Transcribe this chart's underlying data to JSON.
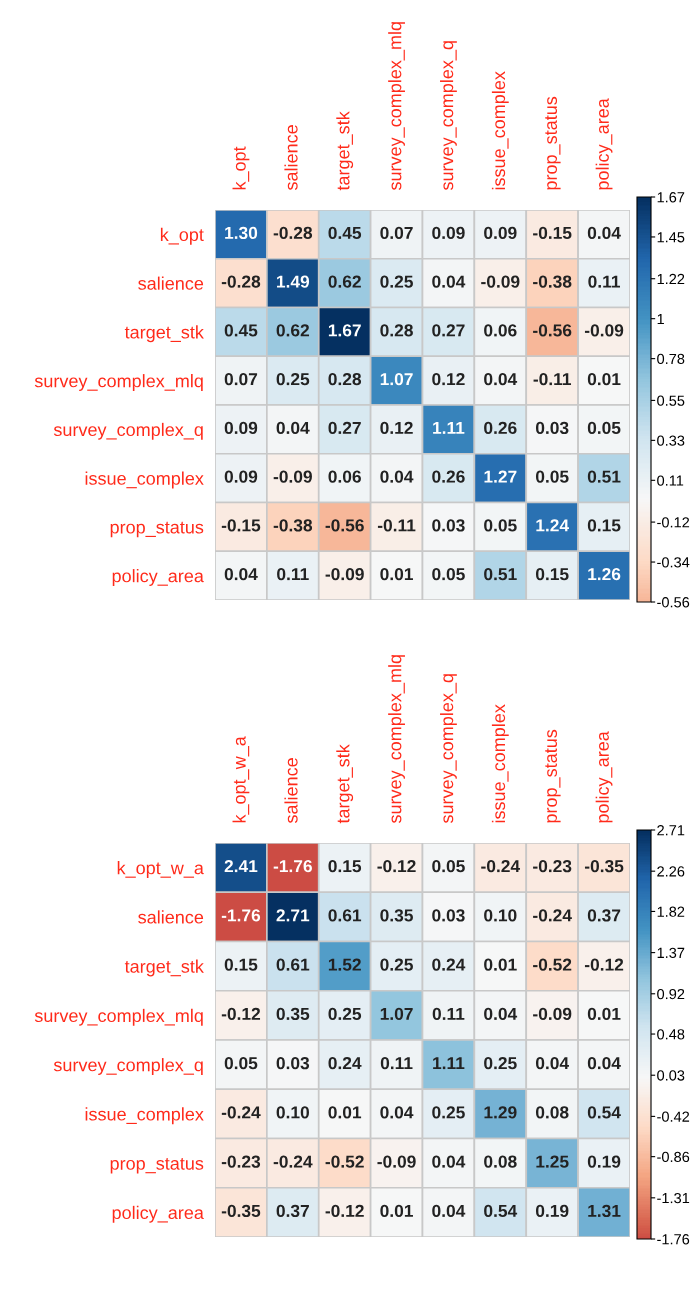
{
  "chart_data": [
    {
      "type": "heatmap",
      "categories": [
        "k_opt",
        "salience",
        "target_stk",
        "survey_complex_mlq",
        "survey_complex_q",
        "issue_complex",
        "prop_status",
        "policy_area"
      ],
      "y_categories": [
        "k_opt",
        "salience",
        "target_stk",
        "survey_complex_mlq",
        "survey_complex_q",
        "issue_complex",
        "prop_status",
        "policy_area"
      ],
      "cells": [
        [
          1.3,
          -0.28,
          0.45,
          0.07,
          0.09,
          0.09,
          -0.15,
          0.04
        ],
        [
          -0.28,
          1.49,
          0.62,
          0.25,
          0.04,
          -0.09,
          -0.38,
          0.11
        ],
        [
          0.45,
          0.62,
          1.67,
          0.28,
          0.27,
          0.06,
          -0.56,
          -0.09
        ],
        [
          0.07,
          0.25,
          0.28,
          1.07,
          0.12,
          0.04,
          -0.11,
          0.01
        ],
        [
          0.09,
          0.04,
          0.27,
          0.12,
          1.11,
          0.26,
          0.03,
          0.05
        ],
        [
          0.09,
          -0.09,
          0.06,
          0.04,
          0.26,
          1.27,
          0.05,
          0.51
        ],
        [
          -0.15,
          -0.38,
          -0.56,
          -0.11,
          0.03,
          0.05,
          1.24,
          0.15
        ],
        [
          0.04,
          0.11,
          -0.09,
          0.01,
          0.05,
          0.51,
          0.15,
          1.26
        ]
      ],
      "cell_labels": [
        [
          "1.30",
          "-0.28",
          "0.45",
          "0.07",
          "0.09",
          "0.09",
          "-0.15",
          "0.04"
        ],
        [
          "-0.28",
          "1.49",
          "0.62",
          "0.25",
          "0.04",
          "-0.09",
          "-0.38",
          "0.11"
        ],
        [
          "0.45",
          "0.62",
          "1.67",
          "0.28",
          "0.27",
          "0.06",
          "-0.56",
          "-0.09"
        ],
        [
          "0.07",
          "0.25",
          "0.28",
          "1.07",
          "0.12",
          "0.04",
          "-0.11",
          "0.01"
        ],
        [
          "0.09",
          "0.04",
          "0.27",
          "0.12",
          "1.11",
          "0.26",
          "0.03",
          "0.05"
        ],
        [
          "0.09",
          "-0.09",
          "0.06",
          "0.04",
          "0.26",
          "1.27",
          "0.05",
          "0.51"
        ],
        [
          "-0.15",
          "-0.38",
          "-0.56",
          "-0.11",
          "0.03",
          "0.05",
          "1.24",
          "0.15"
        ],
        [
          "0.04",
          "0.11",
          "-0.09",
          "0.01",
          "0.05",
          "0.51",
          "0.15",
          "1.26"
        ]
      ],
      "clim": [
        -0.56,
        1.67
      ],
      "cticks": [
        1.67,
        1.45,
        1.22,
        1,
        0.78,
        0.55,
        0.33,
        0.11,
        -0.12,
        -0.34,
        -0.56
      ]
    },
    {
      "type": "heatmap",
      "categories": [
        "k_opt_w_a",
        "salience",
        "target_stk",
        "survey_complex_mlq",
        "survey_complex_q",
        "issue_complex",
        "prop_status",
        "policy_area"
      ],
      "y_categories": [
        "k_opt_w_a",
        "salience",
        "target_stk",
        "survey_complex_mlq",
        "survey_complex_q",
        "issue_complex",
        "prop_status",
        "policy_area"
      ],
      "cells": [
        [
          2.41,
          -1.76,
          0.15,
          -0.12,
          0.05,
          -0.24,
          -0.23,
          -0.35
        ],
        [
          -1.76,
          2.71,
          0.61,
          0.35,
          0.03,
          0.1,
          -0.24,
          0.37
        ],
        [
          0.15,
          0.61,
          1.52,
          0.25,
          0.24,
          0.01,
          -0.52,
          -0.12
        ],
        [
          -0.12,
          0.35,
          0.25,
          1.07,
          0.11,
          0.04,
          -0.09,
          0.01
        ],
        [
          0.05,
          0.03,
          0.24,
          0.11,
          1.11,
          0.25,
          0.04,
          0.04
        ],
        [
          -0.24,
          0.1,
          0.01,
          0.04,
          0.25,
          1.29,
          0.08,
          0.54
        ],
        [
          -0.23,
          -0.24,
          -0.52,
          -0.09,
          0.04,
          0.08,
          1.25,
          0.19
        ],
        [
          -0.35,
          0.37,
          -0.12,
          0.01,
          0.04,
          0.54,
          0.19,
          1.31
        ]
      ],
      "cell_labels": [
        [
          "2.41",
          "-1.76",
          "0.15",
          "-0.12",
          "0.05",
          "-0.24",
          "-0.23",
          "-0.35"
        ],
        [
          "-1.76",
          "2.71",
          "0.61",
          "0.35",
          "0.03",
          "0.10",
          "-0.24",
          "0.37"
        ],
        [
          "0.15",
          "0.61",
          "1.52",
          "0.25",
          "0.24",
          "0.01",
          "-0.52",
          "-0.12"
        ],
        [
          "-0.12",
          "0.35",
          "0.25",
          "1.07",
          "0.11",
          "0.04",
          "-0.09",
          "0.01"
        ],
        [
          "0.05",
          "0.03",
          "0.24",
          "0.11",
          "1.11",
          "0.25",
          "0.04",
          "0.04"
        ],
        [
          "-0.24",
          "0.10",
          "0.01",
          "0.04",
          "0.25",
          "1.29",
          "0.08",
          "0.54"
        ],
        [
          "-0.23",
          "-0.24",
          "-0.52",
          "-0.09",
          "0.04",
          "0.08",
          "1.25",
          "0.19"
        ],
        [
          "-0.35",
          "0.37",
          "-0.12",
          "0.01",
          "0.04",
          "0.54",
          "0.19",
          "1.31"
        ]
      ],
      "clim": [
        -1.76,
        2.71
      ],
      "cticks": [
        2.71,
        2.26,
        1.82,
        1.37,
        0.92,
        0.48,
        0.03,
        -0.42,
        -0.86,
        -1.31,
        -1.76
      ]
    }
  ]
}
